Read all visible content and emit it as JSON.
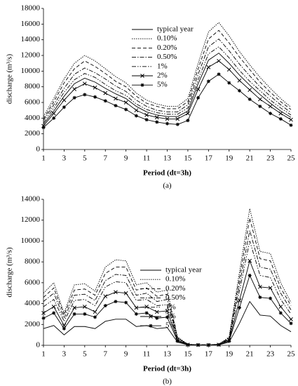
{
  "chart_data": [
    {
      "type": "line",
      "label": "(a)",
      "x_label": "Period (dt=3h)",
      "y_label": "discharge (m³/s)",
      "x": [
        1,
        2,
        3,
        4,
        5,
        6,
        7,
        8,
        9,
        10,
        11,
        12,
        13,
        14,
        15,
        16,
        17,
        18,
        19,
        20,
        21,
        22,
        23,
        24,
        25
      ],
      "xlim": [
        1,
        25
      ],
      "xticks": [
        1,
        3,
        5,
        7,
        9,
        11,
        13,
        15,
        17,
        19,
        21,
        23,
        25
      ],
      "ylim": [
        0,
        18000
      ],
      "yticks": [
        0,
        2000,
        4000,
        6000,
        8000,
        10000,
        12000,
        14000,
        16000,
        18000
      ],
      "legend": "upper center",
      "series": [
        {
          "name": "typical year",
          "color": "#000000",
          "style": "solid",
          "marker": "none",
          "values": [
            3200,
            4900,
            6800,
            8400,
            9100,
            8600,
            7800,
            7100,
            6500,
            5500,
            4800,
            4400,
            4200,
            4200,
            4900,
            8400,
            11400,
            12300,
            11000,
            9500,
            8200,
            7000,
            5900,
            4900,
            4100
          ]
        },
        {
          "name": "0.10%",
          "color": "#000000",
          "style": "dotted",
          "marker": "none",
          "values": [
            4200,
            6500,
            9000,
            11000,
            12000,
            11300,
            10300,
            9300,
            8500,
            7200,
            6300,
            5800,
            5500,
            5500,
            6500,
            11000,
            15000,
            16200,
            14500,
            12500,
            10800,
            9200,
            7800,
            6500,
            5400
          ]
        },
        {
          "name": "0.20%",
          "color": "#000000",
          "style": "dashed",
          "marker": "none",
          "values": [
            3900,
            6100,
            8500,
            10300,
            11300,
            10600,
            9700,
            8700,
            8000,
            6800,
            5900,
            5500,
            5200,
            5200,
            6100,
            10300,
            14100,
            15200,
            13600,
            11800,
            10200,
            8600,
            7300,
            6100,
            5100
          ]
        },
        {
          "name": "0.50%",
          "color": "#000000",
          "style": "dashdot",
          "marker": "none",
          "values": [
            3700,
            5700,
            7800,
            9600,
            10400,
            9800,
            9000,
            8100,
            7400,
            6300,
            5500,
            5000,
            4800,
            4800,
            5700,
            9600,
            13100,
            14100,
            12600,
            10900,
            9400,
            8000,
            6800,
            5700,
            4700
          ]
        },
        {
          "name": "1%",
          "color": "#000000",
          "style": "dashdotdot",
          "marker": "none",
          "values": [
            3400,
            5300,
            7300,
            8900,
            9700,
            9200,
            8300,
            7500,
            6900,
            5800,
            5100,
            4700,
            4500,
            4500,
            5300,
            8900,
            12200,
            13100,
            11700,
            10100,
            8700,
            7500,
            6300,
            5300,
            4400
          ]
        },
        {
          "name": "2%",
          "color": "#000000",
          "style": "solid",
          "marker": "x",
          "values": [
            3000,
            4600,
            6300,
            7700,
            8400,
            7900,
            7200,
            6500,
            6000,
            5000,
            4400,
            4100,
            3900,
            3900,
            4600,
            7700,
            10500,
            11300,
            10200,
            8800,
            7600,
            6400,
            5500,
            4600,
            3800
          ]
        },
        {
          "name": "5%",
          "color": "#000000",
          "style": "solid",
          "marker": "star",
          "values": [
            2800,
            4000,
            5400,
            6600,
            7000,
            6700,
            6200,
            5600,
            5100,
            4300,
            3800,
            3500,
            3300,
            3200,
            3700,
            6600,
            8700,
            9600,
            8500,
            7500,
            6400,
            5500,
            4600,
            3900,
            3100
          ]
        }
      ]
    },
    {
      "type": "line",
      "label": "(b)",
      "x_label": "Period (dt=3h)",
      "y_label": "discharge (m³/s)",
      "x": [
        1,
        2,
        3,
        4,
        5,
        6,
        7,
        8,
        9,
        10,
        11,
        12,
        13,
        14,
        15,
        16,
        17,
        18,
        19,
        20,
        21,
        22,
        23,
        24,
        25
      ],
      "xlim": [
        1,
        25
      ],
      "xticks": [
        1,
        3,
        5,
        7,
        9,
        11,
        13,
        15,
        17,
        19,
        21,
        23,
        25
      ],
      "ylim": [
        0,
        14000
      ],
      "yticks": [
        0,
        2000,
        4000,
        6000,
        8000,
        10000,
        12000,
        14000
      ],
      "legend": "upper center",
      "series": [
        {
          "name": "typical year",
          "color": "#000000",
          "style": "solid",
          "marker": "none",
          "values": [
            1600,
            1900,
            1000,
            1800,
            1800,
            1600,
            2300,
            2500,
            2500,
            1800,
            1900,
            1600,
            1700,
            300,
            50,
            20,
            20,
            50,
            300,
            2100,
            4200,
            2900,
            2800,
            1900,
            1300
          ]
        },
        {
          "name": "0.10%",
          "color": "#000000",
          "style": "dotted",
          "marker": "none",
          "values": [
            5000,
            6000,
            3100,
            5800,
            5900,
            5200,
            7500,
            8200,
            8100,
            5800,
            6000,
            5100,
            5300,
            800,
            100,
            50,
            50,
            100,
            800,
            7000,
            13100,
            9000,
            8800,
            6000,
            4100
          ]
        },
        {
          "name": "0.20%",
          "color": "#000000",
          "style": "dashed",
          "marker": "none",
          "values": [
            4600,
            5500,
            2900,
            5300,
            5400,
            4800,
            6900,
            7500,
            7500,
            5300,
            5500,
            4700,
            4900,
            700,
            90,
            50,
            50,
            90,
            700,
            6400,
            12200,
            8300,
            8100,
            5500,
            3800
          ]
        },
        {
          "name": "0.50%",
          "color": "#000000",
          "style": "dashdot",
          "marker": "none",
          "values": [
            4200,
            5000,
            2600,
            4800,
            4900,
            4300,
            6200,
            6800,
            6700,
            4800,
            5000,
            4200,
            4400,
            700,
            80,
            40,
            40,
            80,
            700,
            5800,
            11000,
            7500,
            7300,
            5000,
            3400
          ]
        },
        {
          "name": "1%",
          "color": "#000000",
          "style": "dashdotdot",
          "marker": "none",
          "values": [
            3700,
            4400,
            2300,
            4300,
            4400,
            3800,
            5600,
            6100,
            6000,
            4300,
            4400,
            3800,
            3900,
            600,
            70,
            40,
            40,
            70,
            600,
            5200,
            10000,
            6700,
            6500,
            4400,
            3000
          ]
        },
        {
          "name": "2%",
          "color": "#000000",
          "style": "solid",
          "marker": "x",
          "values": [
            3100,
            3700,
            1900,
            3600,
            3700,
            3200,
            4700,
            5100,
            5000,
            3600,
            3700,
            3200,
            3300,
            500,
            60,
            30,
            30,
            60,
            500,
            4300,
            8100,
            5600,
            5500,
            3700,
            2500
          ]
        },
        {
          "name": "5%",
          "color": "#000000",
          "style": "solid",
          "marker": "star",
          "values": [
            2600,
            3100,
            1600,
            3000,
            3000,
            2700,
            3800,
            4200,
            4100,
            3000,
            3100,
            2600,
            2700,
            400,
            50,
            30,
            30,
            50,
            400,
            3600,
            6700,
            4600,
            4500,
            3100,
            2100
          ]
        }
      ]
    }
  ]
}
